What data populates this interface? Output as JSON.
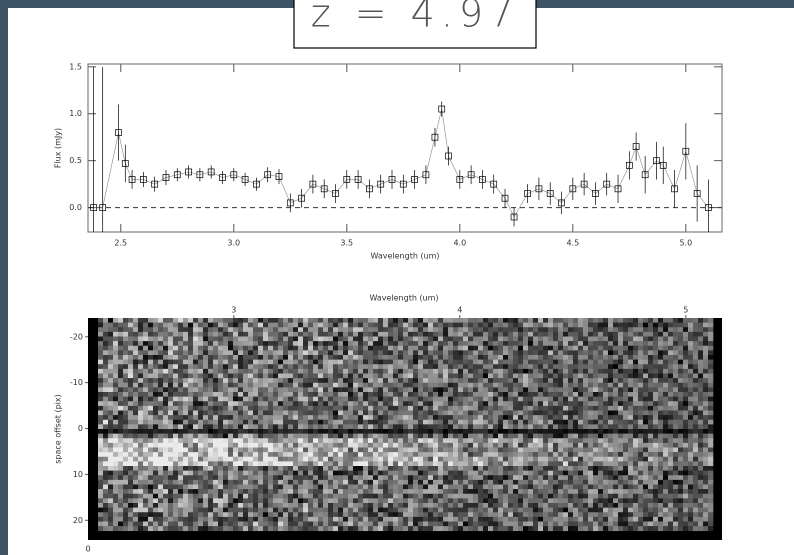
{
  "title": "z = 4.97",
  "chart_data": [
    {
      "type": "errorbar",
      "xlabel": "Wavelength (um)",
      "ylabel": "Flux (mJy)",
      "x": [
        2.38,
        2.42,
        2.49,
        2.52,
        2.55,
        2.6,
        2.65,
        2.7,
        2.75,
        2.8,
        2.85,
        2.9,
        2.95,
        3.0,
        3.05,
        3.1,
        3.15,
        3.2,
        3.25,
        3.3,
        3.35,
        3.4,
        3.45,
        3.5,
        3.55,
        3.6,
        3.65,
        3.7,
        3.75,
        3.8,
        3.85,
        3.89,
        3.92,
        3.95,
        4.0,
        4.05,
        4.1,
        4.15,
        4.2,
        4.24,
        4.3,
        4.35,
        4.4,
        4.45,
        4.5,
        4.55,
        4.6,
        4.65,
        4.7,
        4.75,
        4.78,
        4.82,
        4.87,
        4.9,
        4.95,
        5.0,
        5.05,
        5.1
      ],
      "values": [
        0.0,
        0.0,
        0.8,
        0.47,
        0.3,
        0.3,
        0.25,
        0.32,
        0.35,
        0.38,
        0.35,
        0.38,
        0.32,
        0.35,
        0.3,
        0.25,
        0.35,
        0.33,
        0.05,
        0.1,
        0.25,
        0.2,
        0.15,
        0.3,
        0.3,
        0.2,
        0.25,
        0.3,
        0.25,
        0.3,
        0.35,
        0.75,
        1.05,
        0.55,
        0.3,
        0.35,
        0.3,
        0.25,
        0.1,
        -0.1,
        0.15,
        0.2,
        0.15,
        0.05,
        0.2,
        0.25,
        0.15,
        0.25,
        0.2,
        0.45,
        0.65,
        0.35,
        0.5,
        0.45,
        0.2,
        0.6,
        0.15,
        0.0
      ],
      "errors": [
        1.5,
        1.5,
        0.3,
        0.2,
        0.1,
        0.08,
        0.08,
        0.08,
        0.07,
        0.07,
        0.07,
        0.07,
        0.07,
        0.07,
        0.07,
        0.07,
        0.08,
        0.08,
        0.1,
        0.1,
        0.1,
        0.1,
        0.1,
        0.1,
        0.1,
        0.1,
        0.1,
        0.1,
        0.1,
        0.1,
        0.1,
        0.1,
        0.08,
        0.1,
        0.1,
        0.1,
        0.1,
        0.1,
        0.1,
        0.1,
        0.1,
        0.12,
        0.12,
        0.12,
        0.12,
        0.12,
        0.12,
        0.12,
        0.15,
        0.15,
        0.15,
        0.2,
        0.2,
        0.2,
        0.2,
        0.3,
        0.3,
        0.3
      ],
      "color": "#000000",
      "xlim": [
        2.355,
        5.16
      ],
      "ylim": [
        -0.26,
        1.53
      ],
      "xticks": [
        2.5,
        {
          "value": 3.0,
          "label": "3.0"
        },
        3.5,
        {
          "value": 4.0,
          "label": "4.0"
        },
        4.5,
        {
          "value": 5.0,
          "label": "5.0"
        }
      ],
      "yticks": [
        {
          "value": 0.0,
          "label": "0.0"
        },
        0.5,
        {
          "value": 1.0,
          "label": "1.0"
        },
        1.5
      ]
    },
    {
      "type": "image",
      "xlabel": "Wavelength (um)",
      "ylabel": "space offset (pix)",
      "xlim": [
        2.355,
        5.16
      ],
      "ylim": [
        -24.1,
        24.3
      ],
      "y_inverted": true,
      "xticks": [
        3,
        4,
        5
      ],
      "yticks": [
        -20,
        -10,
        0,
        10,
        20
      ],
      "corner_label": "0"
    }
  ]
}
